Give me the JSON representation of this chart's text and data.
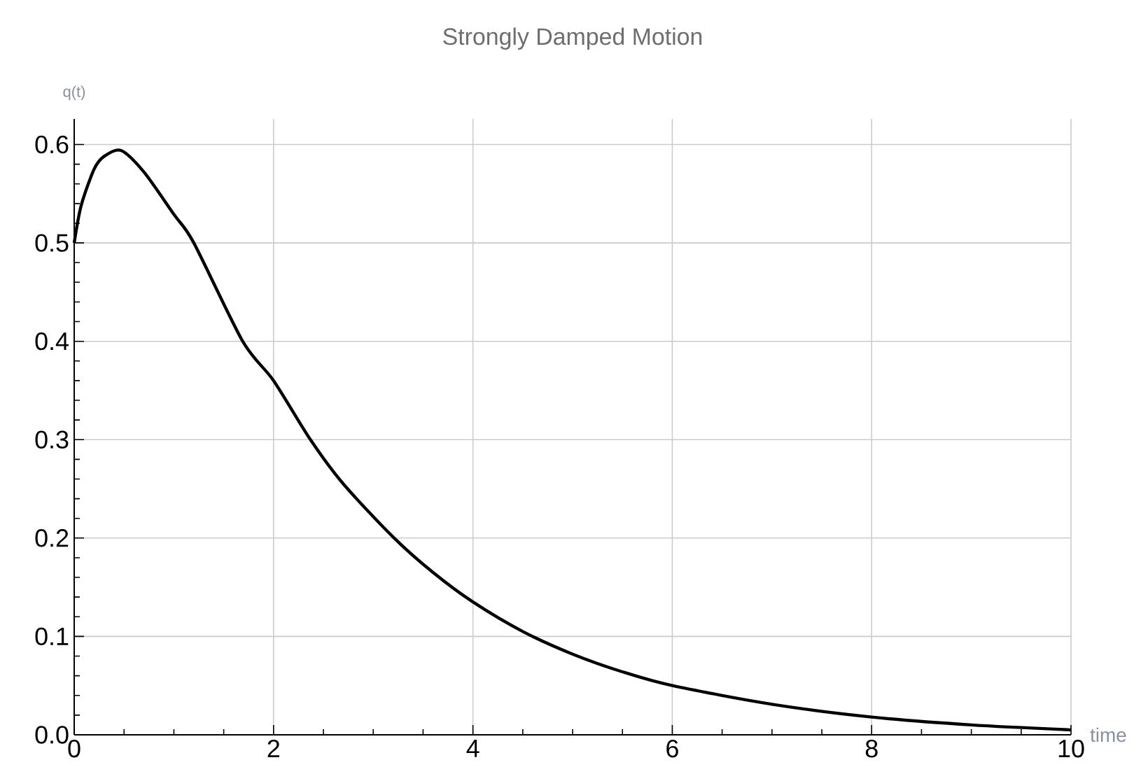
{
  "chart_data": {
    "type": "line",
    "title": "Strongly Damped Motion",
    "xlabel": "time",
    "ylabel": "q(t)",
    "x": [
      0,
      0.07,
      0.2,
      0.3,
      0.47,
      0.7,
      1.0,
      1.2,
      1.69,
      2,
      2.37,
      2.7,
      3.21,
      3.6,
      4,
      4.5,
      5,
      5.5,
      6,
      7,
      8,
      9,
      10
    ],
    "series": [
      {
        "color": "#000000",
        "values": [
          0.5,
          0.538,
          0.575,
          0.588,
          0.594,
          0.572,
          0.529,
          0.5,
          0.4,
          0.36,
          0.3,
          0.255,
          0.2,
          0.165,
          0.135,
          0.105,
          0.082,
          0.064,
          0.05,
          0.031,
          0.018,
          0.01,
          0.005
        ]
      }
    ],
    "xlim": [
      0,
      10
    ],
    "ylim": [
      0,
      0.626
    ],
    "xticks": [
      0,
      2,
      4,
      6,
      8,
      10
    ],
    "yticks": [
      {
        "value": 0,
        "label": "0.0"
      },
      0.1,
      0.2,
      0.3,
      0.4,
      0.5,
      0.6
    ],
    "grid": true,
    "marker": "none",
    "line_style": "solid"
  }
}
